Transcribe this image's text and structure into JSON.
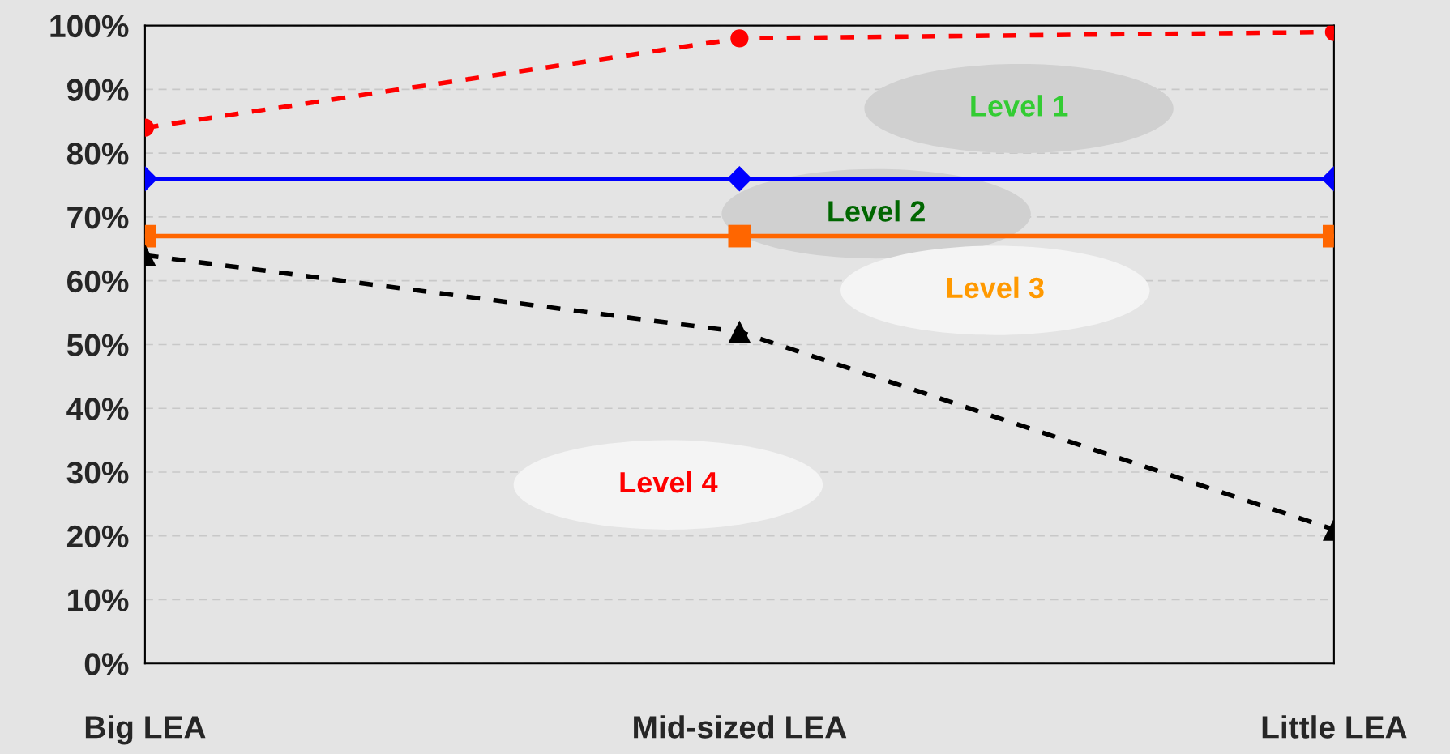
{
  "chart_data": {
    "type": "line",
    "categories": [
      "Big LEA",
      "Mid-sized LEA",
      "Little LEA"
    ],
    "series": [
      {
        "color": "#ff0000",
        "values": [
          84,
          98,
          99
        ],
        "marker": "circle",
        "line_style": "dashed"
      },
      {
        "color": "#0000ff",
        "values": [
          76,
          76,
          76
        ],
        "marker": "diamond",
        "line_style": "solid"
      },
      {
        "color": "#ff6600",
        "values": [
          67,
          67,
          67
        ],
        "marker": "square",
        "line_style": "solid"
      },
      {
        "color": "#000000",
        "values": [
          64,
          52,
          21
        ],
        "marker": "triangle",
        "line_style": "dashed"
      }
    ],
    "ylim": [
      0,
      100
    ],
    "yticks": [
      {
        "value": 0,
        "label": "0%"
      },
      {
        "value": 10,
        "label": "10%"
      },
      {
        "value": 20,
        "label": "20%"
      },
      {
        "value": 30,
        "label": "30%"
      },
      {
        "value": 40,
        "label": "40%"
      },
      {
        "value": 50,
        "label": "50%"
      },
      {
        "value": 60,
        "label": "60%"
      },
      {
        "value": 70,
        "label": "70%"
      },
      {
        "value": 80,
        "label": "80%"
      },
      {
        "value": 90,
        "label": "90%"
      },
      {
        "value": 100,
        "label": "100%"
      }
    ],
    "grid": "y",
    "annotations": [
      "Level 1",
      "Level 2",
      "Level 3",
      "Level 4"
    ]
  }
}
